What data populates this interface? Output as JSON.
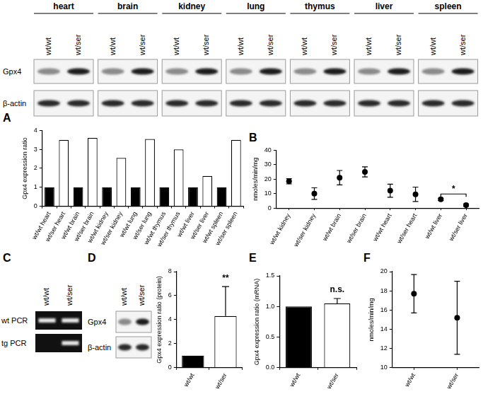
{
  "panel_labels": [
    "A",
    "B",
    "C",
    "D",
    "E",
    "F"
  ],
  "blots": {
    "A": {
      "rows": [
        "Gpx4",
        "β-actin"
      ],
      "groups": [
        {
          "title": "heart",
          "lanes": [
            "wt/wt",
            "wt/ser"
          ]
        },
        {
          "title": "brain",
          "lanes": [
            "wt/wt",
            "wt/ser"
          ]
        },
        {
          "title": "kidney",
          "lanes": [
            "wt/wt",
            "wt/ser"
          ]
        },
        {
          "title": "lung",
          "lanes": [
            "wt/wt",
            "wt/ser"
          ]
        },
        {
          "title": "thymus",
          "lanes": [
            "wt/wt",
            "wt/ser"
          ]
        },
        {
          "title": "liver",
          "lanes": [
            "wt/wt",
            "wt/ser"
          ]
        },
        {
          "title": "spleen",
          "lanes": [
            "wt/wt",
            "wt/ser"
          ]
        }
      ]
    },
    "C": {
      "lanes": [
        "wt/wt",
        "wt/ser"
      ],
      "rows": [
        {
          "label": "wt PCR",
          "bands": [
            true,
            true
          ]
        },
        {
          "label": "tg PCR",
          "bands": [
            false,
            true
          ]
        }
      ]
    },
    "D": {
      "rows": [
        "Gpx4",
        "β-actin"
      ],
      "lanes": [
        "wt/wt",
        "wt/ser"
      ]
    }
  },
  "chart_data": [
    {
      "type": "bar",
      "y_label": "Gpx4 expression ratio",
      "categories": [
        "wt/wt heart",
        "wt/ser heart",
        "wt/wt brain",
        "wt/ser brain",
        "wt/wt kidney",
        "wt/ser kidney",
        "wt/wt lung",
        "wt/ser lung",
        "wt/wt thymus",
        "wt/ser thymus",
        "wt/wt liver",
        "wt/ser liver",
        "wt/wt spleen",
        "wt/ser spleen"
      ],
      "values": [
        1,
        3.5,
        1,
        3.6,
        1,
        2.55,
        1,
        3.55,
        1,
        3.0,
        1,
        1.6,
        1,
        3.5
      ],
      "colors": [
        "#000000",
        "#ffffff",
        "#000000",
        "#ffffff",
        "#000000",
        "#ffffff",
        "#000000",
        "#ffffff",
        "#000000",
        "#ffffff",
        "#000000",
        "#ffffff",
        "#000000",
        "#ffffff"
      ],
      "ylim": [
        0,
        4
      ],
      "yticks": [
        0,
        1,
        2,
        3,
        4
      ],
      "grid": false
    },
    {
      "type": "scatter",
      "y_label": "nmoles/min/mg",
      "categories": [
        "wt/wt kidney",
        "wt/ser kidney",
        "wt/wt brain",
        "wt/ser brain",
        "wt/wt heart",
        "wt/ser heart",
        "wt/wt liver",
        "wt/ser liver"
      ],
      "values": [
        18.5,
        10,
        21,
        25,
        12,
        9.5,
        6,
        2
      ],
      "errors": [
        1.8,
        4,
        5,
        3.5,
        4.5,
        5,
        0.8,
        0.8
      ],
      "color": "#000000",
      "marker": "circle",
      "ylim": [
        0,
        40
      ],
      "yticks": [
        0,
        10,
        20,
        30,
        40
      ],
      "grid": false,
      "annotations": [
        {
          "text": "*",
          "from": "wt/wt liver",
          "to": "wt/ser liver"
        }
      ]
    },
    {
      "type": "bar",
      "y_label": "Gpx4 expression ratio (protein)",
      "categories": [
        "wt/wt",
        "wt/ser"
      ],
      "values": [
        1,
        4.3
      ],
      "errors": [
        null,
        2.45
      ],
      "colors": [
        "#000000",
        "#ffffff"
      ],
      "ylim": [
        0,
        8
      ],
      "yticks": [
        0,
        2,
        4,
        6,
        8
      ],
      "grid": false,
      "annotations": [
        {
          "text": "**",
          "from": "wt/ser",
          "to": "wt/ser"
        }
      ]
    },
    {
      "type": "bar",
      "y_label": "Gpx4 expression ratio (mRNA)",
      "categories": [
        "wt/wt",
        "wt/ser"
      ],
      "values": [
        1,
        1.05
      ],
      "errors": [
        null,
        0.08
      ],
      "colors": [
        "#000000",
        "#ffffff"
      ],
      "ylim": [
        0,
        1.5
      ],
      "yticks": [
        {
          "value": 0,
          "label": "0.0"
        },
        0.5,
        {
          "value": 1,
          "label": "1.0"
        },
        {
          "value": 1.5,
          "label": "1.5"
        }
      ],
      "grid": false,
      "annotations": [
        {
          "text": "n.s.",
          "from": "wt/ser",
          "to": "wt/ser"
        }
      ]
    },
    {
      "type": "scatter",
      "y_label": "nmoles/min/mg",
      "categories": [
        "wt/wt",
        "wt/ser"
      ],
      "values": [
        17.7,
        15.2
      ],
      "errors": [
        2,
        3.8
      ],
      "color": "#000000",
      "marker": "circle",
      "ylim": [
        10,
        20
      ],
      "yticks": [
        10,
        12,
        14,
        16,
        18,
        20
      ],
      "grid": false
    }
  ]
}
